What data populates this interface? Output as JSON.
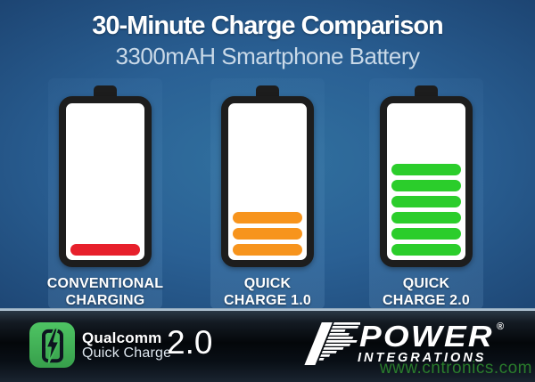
{
  "header": {
    "title": "30-Minute Charge Comparison",
    "subtitle": "3300mAH Smartphone Battery"
  },
  "batteries": [
    {
      "label_line1": "CONVENTIONAL",
      "label_line2": "CHARGING",
      "segments": 1,
      "max_segments": 6,
      "bar_color": "#e7202b"
    },
    {
      "label_line1": "QUICK",
      "label_line2": "CHARGE 1.0",
      "segments": 3,
      "max_segments": 6,
      "bar_color": "#f7941d"
    },
    {
      "label_line1": "QUICK",
      "label_line2": "CHARGE 2.0",
      "segments": 6,
      "max_segments": 6,
      "bar_color": "#2bcd2b"
    }
  ],
  "footer": {
    "qualcomm": {
      "brand": "Qualcomm",
      "product": "Quick Charge",
      "version": "2.0",
      "icon": "battery-lightning-bolt-icon",
      "icon_color": "#45b95a"
    },
    "power_integrations": {
      "name": "POWER",
      "subname": "INTEGRATIONS",
      "registered_mark": "®",
      "logo_icon": "striped-p-speed-lines-icon"
    }
  },
  "watermark": {
    "text": "www.cntronics.com",
    "color": "#2e8b2e"
  },
  "colors": {
    "background_center": "#2f6fa8",
    "background_edge": "#14305a",
    "battery_border": "#1d1d1d",
    "battery_fill": "#ffffff",
    "red": "#e7202b",
    "orange": "#f7941d",
    "green": "#2bcd2b",
    "footer_band": "#06090d",
    "divider": "#c6d8e6",
    "title_text": "#ffffff",
    "subtitle_text": "#c9d9e8"
  },
  "chart_data": {
    "type": "bar",
    "title": "30-Minute Charge Comparison",
    "subtitle": "3300mAH Smartphone Battery",
    "categories": [
      "CONVENTIONAL CHARGING",
      "QUICK CHARGE 1.0",
      "QUICK CHARGE 2.0"
    ],
    "values": [
      1,
      3,
      6
    ],
    "value_unit": "filled battery segments out of 6",
    "series_colors": [
      "#e7202b",
      "#f7941d",
      "#2bcd2b"
    ],
    "legend": false,
    "layout": "three battery glyphs side by side, fill level encodes charge after 30 minutes"
  }
}
